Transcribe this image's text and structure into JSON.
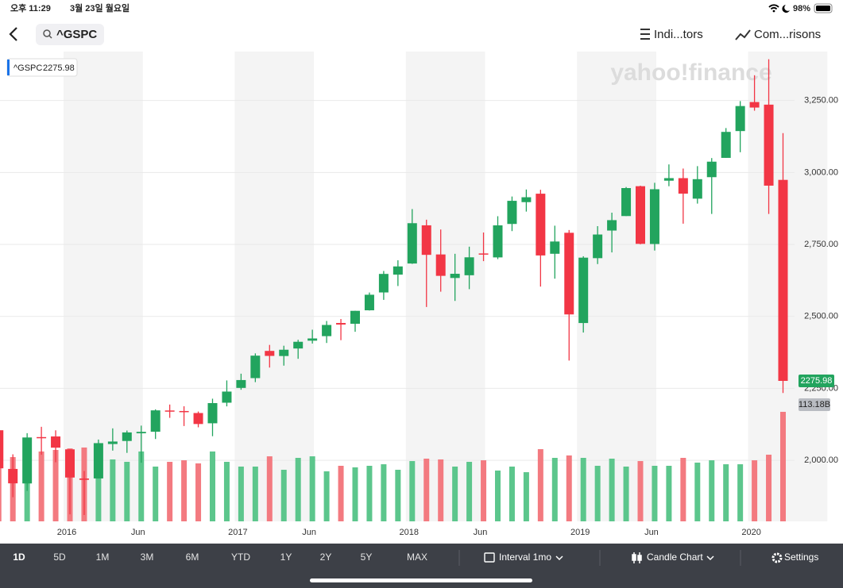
{
  "status_bar": {
    "time": "오후 11:29",
    "date": "3월 23일 월요일",
    "battery": "98%"
  },
  "nav": {
    "search": "^GSPC",
    "indicators": "Indi...tors",
    "comparisons": "Com...risons"
  },
  "watermark": "yahoo!finance",
  "chart_data": {
    "type": "candlestick",
    "symbol": "^GSPC",
    "categories": [
      null,
      null,
      null,
      null,
      null,
      "2016",
      null,
      null,
      null,
      null,
      "Jun",
      null,
      null,
      null,
      null,
      null,
      null,
      "2017",
      null,
      null,
      null,
      null,
      "Jun",
      null,
      null,
      null,
      null,
      null,
      null,
      "2018",
      null,
      null,
      null,
      null,
      "Jun",
      null,
      null,
      null,
      null,
      null,
      null,
      "2019",
      null,
      null,
      null,
      null,
      "Jun",
      null,
      null,
      null,
      null,
      null,
      null,
      "2020",
      null,
      null
    ],
    "open": [
      2104.49,
      1970.09,
      1919.65,
      2080.76,
      2082.93,
      2038.2,
      1936.94,
      1937.09,
      2056.62,
      2067.17,
      2093.94,
      2099.34,
      2173.15,
      2171.33,
      2164.33,
      2128.68,
      2200.17,
      2251.57,
      2285.59,
      2380.13,
      2362.34,
      2388.5,
      2415.65,
      2431.39,
      2477.1,
      2474.42,
      2521.2,
      2583.21,
      2645.1,
      2683.73,
      2816.45,
      2715.22,
      2633.45,
      2642.96,
      2718.7,
      2704.95,
      2821.17,
      2896.96,
      2926.29,
      2717.58,
      2790.5,
      2476.96,
      2702.32,
      2798.22,
      2848.63,
      2952.33,
      2751.53,
      2971.41,
      2980.32,
      2909.01,
      2983.69,
      3050.72,
      3143.85,
      3244.67,
      3235.66,
      2974.28
    ],
    "high": [
      2112.66,
      2020.86,
      2094.32,
      2116.48,
      2104.27,
      2038.2,
      1962.96,
      2072.21,
      2111.05,
      2103.48,
      2120.55,
      2177.09,
      2193.81,
      2187.87,
      2169.6,
      2214.1,
      2277.53,
      2300.99,
      2371.54,
      2400.98,
      2398.16,
      2418.71,
      2453.82,
      2484.04,
      2490.87,
      2519.44,
      2582.98,
      2657.74,
      2694.97,
      2872.87,
      2835.96,
      2801.9,
      2717.49,
      2742.24,
      2791.47,
      2848.03,
      2916.5,
      2940.91,
      2939.86,
      2815.15,
      2800.18,
      2708.95,
      2813.49,
      2860.31,
      2949.52,
      2954.13,
      2964.15,
      3027.98,
      3013.59,
      3021.99,
      3050.1,
      3154.26,
      3247.93,
      3337.77,
      3393.52,
      3136.72
    ],
    "low": [
      1867.01,
      1871.91,
      1893.7,
      2019.39,
      1993.26,
      1812.29,
      1810.1,
      1937.09,
      2033.8,
      2025.91,
      1991.68,
      2074.02,
      2147.58,
      2119.12,
      2114.72,
      2083.79,
      2187.44,
      2245.13,
      2271.65,
      2322.25,
      2328.95,
      2352.72,
      2405.7,
      2407.7,
      2417.35,
      2446.55,
      2520.4,
      2557.45,
      2605.52,
      2682.36,
      2532.69,
      2585.89,
      2553.8,
      2594.62,
      2691.99,
      2698.95,
      2796.34,
      2864.12,
      2603.54,
      2631.09,
      2346.58,
      2443.96,
      2681.83,
      2722.27,
      2848.63,
      2750.52,
      2728.81,
      2952.22,
      2822.12,
      2891.85,
      2855.94,
      3050.72,
      3070.33,
      3214.64,
      2855.84,
      2234
    ],
    "close": [
      1972.18,
      1920.03,
      2079.36,
      2080.41,
      2043.94,
      1940.24,
      1932.23,
      2059.74,
      2065.3,
      2096.95,
      2098.86,
      2173.6,
      2170.95,
      2168.27,
      2126.15,
      2198.81,
      2238.83,
      2278.87,
      2363.64,
      2362.72,
      2384.2,
      2411.8,
      2423.41,
      2470.3,
      2471.65,
      2519.36,
      2575.26,
      2647.58,
      2673.61,
      2823.81,
      2713.83,
      2640.87,
      2648.05,
      2705.27,
      2718.37,
      2816.29,
      2901.52,
      2913.98,
      2711.74,
      2760.17,
      2506.85,
      2704.1,
      2784.49,
      2834.4,
      2945.83,
      2752.06,
      2941.76,
      2980.38,
      2926.46,
      2976.74,
      3037.56,
      3140.98,
      3230.78,
      3225.52,
      2954.22,
      2275.98
    ],
    "volume": {
      "values": [
        77.9,
        66.4,
        72.2,
        72.2,
        73.8,
        75.4,
        76.3,
        75.4,
        64.0,
        61.5,
        72.2,
        56.6,
        61.5,
        63.1,
        59.9,
        72.2,
        61.5,
        56.6,
        56.6,
        67.2,
        53.3,
        65.6,
        67.2,
        51.7,
        57.4,
        55.8,
        57.4,
        59.0,
        53.3,
        62.3,
        64.8,
        64.0,
        56.6,
        61.5,
        63.1,
        52.5,
        56.6,
        50.8,
        74.6,
        65.6,
        68.1,
        65.6,
        57.4,
        64.8,
        56.6,
        62.3,
        57.4,
        57.4,
        65.6,
        60.7,
        63.1,
        59.0,
        59.0,
        63.1,
        68.9,
        113.18
      ],
      "value_labels": [
        null,
        null,
        null,
        null,
        null,
        null,
        null,
        null,
        null,
        null,
        null,
        null,
        null,
        null,
        null,
        null,
        null,
        null,
        null,
        null,
        null,
        null,
        null,
        null,
        null,
        null,
        null,
        null,
        null,
        null,
        null,
        null,
        null,
        null,
        null,
        null,
        null,
        null,
        null,
        null,
        null,
        null,
        null,
        null,
        null,
        null,
        null,
        null,
        null,
        null,
        null,
        null,
        null,
        null,
        null,
        "113.18B"
      ]
    },
    "ylim": [
      1788,
      3420
    ],
    "yticks": [
      {
        "value": 2000,
        "label": "2,000.00"
      },
      {
        "value": 2250,
        "label": "2,250.00"
      },
      {
        "value": 2500,
        "label": "2,500.00"
      },
      {
        "value": 2750,
        "label": "2,750.00"
      },
      {
        "value": 3000,
        "label": "3,000.00"
      },
      {
        "value": 3250,
        "label": "3,250.00"
      }
    ],
    "y2lim": [
      0,
      485.5
    ],
    "grid": true,
    "up_color": "#22a45e",
    "down_color": "#f23645",
    "volume_up_color": "#5cc68c",
    "volume_down_color": "#f37a80"
  },
  "toolbar": {
    "ranges": [
      "1D",
      "5D",
      "1M",
      "3M",
      "6M",
      "YTD",
      "1Y",
      "2Y",
      "5Y",
      "MAX"
    ],
    "interval": "Interval 1mo",
    "chart_type": "Candle Chart",
    "settings": "Settings"
  }
}
